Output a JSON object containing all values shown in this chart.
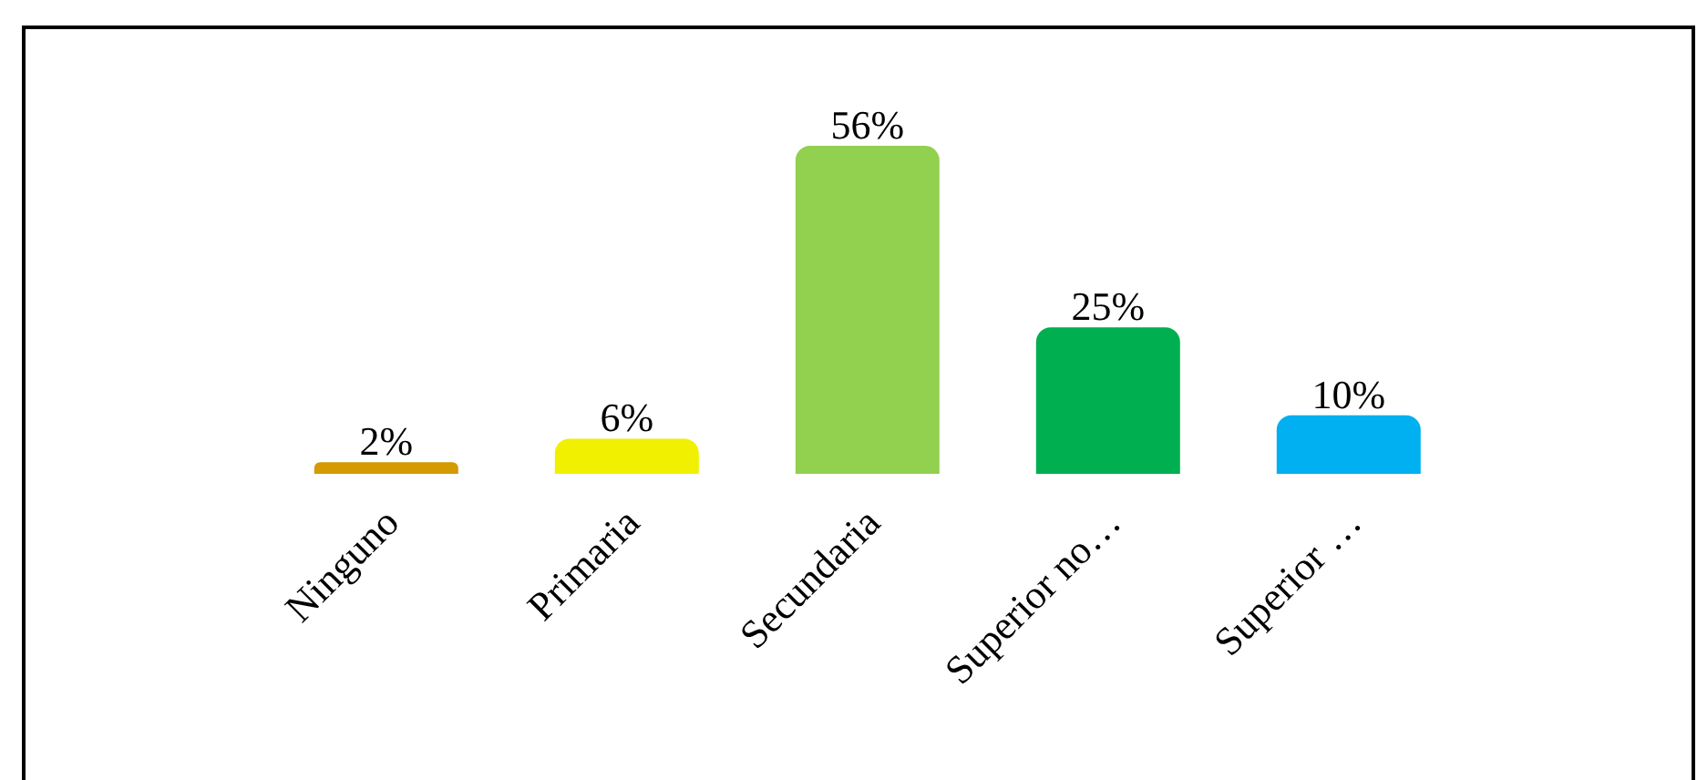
{
  "chart_data": {
    "type": "bar",
    "categories": [
      "Ninguno",
      "Primaria",
      "Secundaria",
      "Superior no…",
      "Superior …"
    ],
    "values": [
      2,
      6,
      56,
      25,
      10
    ],
    "value_labels": [
      "2%",
      "6%",
      "56%",
      "25%",
      "10%"
    ],
    "colors": [
      "#d49a00",
      "#f0f000",
      "#92d050",
      "#00b050",
      "#00b0f0"
    ],
    "tick_labels": "x",
    "grid": false,
    "legend": false
  }
}
